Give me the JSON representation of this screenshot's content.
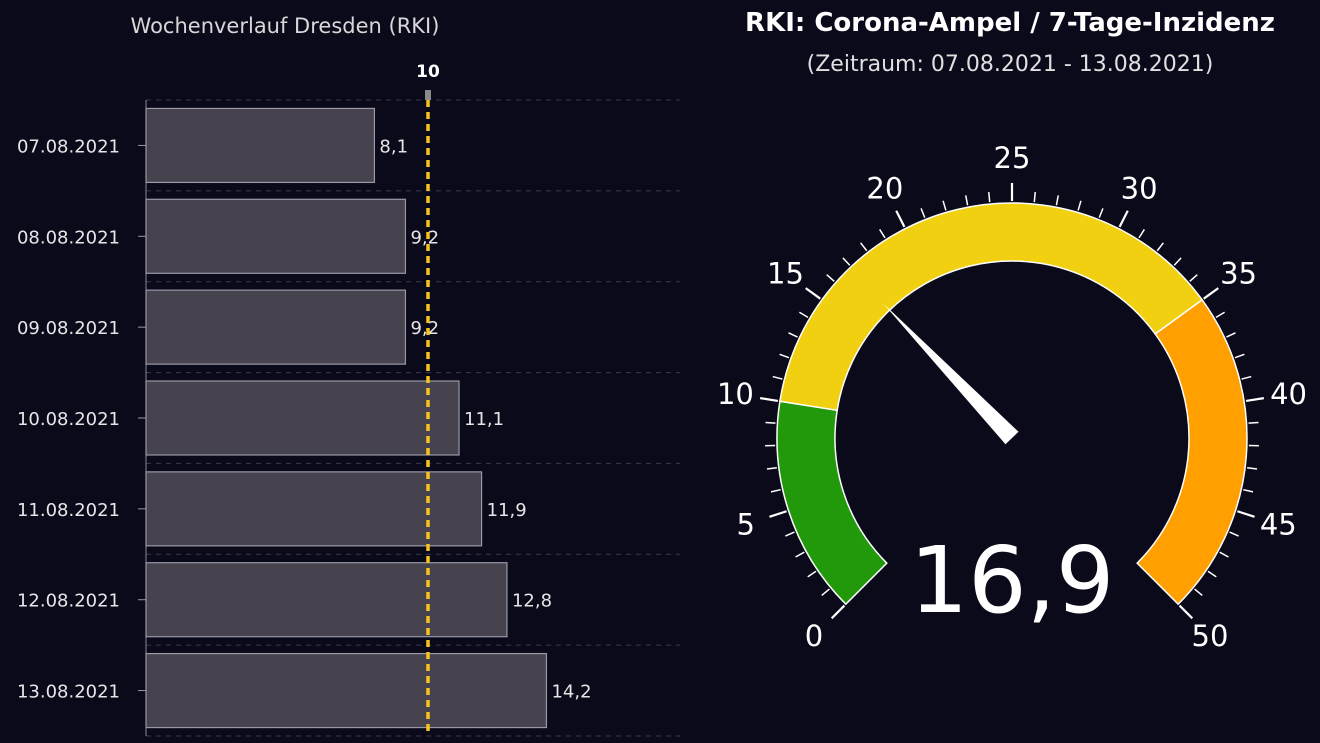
{
  "chart_data": [
    {
      "type": "bar",
      "orientation": "horizontal",
      "title": "Wochenverlauf Dresden (RKI)",
      "categories": [
        "07.08.2021",
        "08.08.2021",
        "09.08.2021",
        "10.08.2021",
        "11.08.2021",
        "12.08.2021",
        "13.08.2021"
      ],
      "values": [
        8.1,
        9.2,
        9.2,
        11.1,
        11.9,
        12.8,
        14.2
      ],
      "value_labels": [
        "8,1",
        "9,2",
        "9,2",
        "11,1",
        "11,9",
        "12,8",
        "14,2"
      ],
      "xlim": [
        0,
        19
      ],
      "reference_line": {
        "value": 10,
        "label": "10",
        "color": "#f5c518"
      },
      "bar_color": "#46434f",
      "grid": true
    },
    {
      "type": "gauge",
      "title": "RKI: Corona-Ampel / 7-Tage-Inzidenz",
      "subtitle": "(Zeitraum: 07.08.2021 - 13.08.2021)",
      "value": 16.9,
      "value_label": "16,9",
      "min": 0,
      "max": 50,
      "major_ticks": [
        0,
        5,
        10,
        15,
        20,
        25,
        30,
        35,
        40,
        45,
        50
      ],
      "major_tick_labels": [
        "0",
        "5",
        "10",
        "15",
        "20",
        "25",
        "30",
        "35",
        "40",
        "45",
        "50"
      ],
      "bands": [
        {
          "from": 0,
          "to": 10,
          "color": "#22990a"
        },
        {
          "from": 10,
          "to": 35,
          "color": "#f0d010"
        },
        {
          "from": 35,
          "to": 50,
          "color": "#ff9f00"
        }
      ]
    }
  ]
}
